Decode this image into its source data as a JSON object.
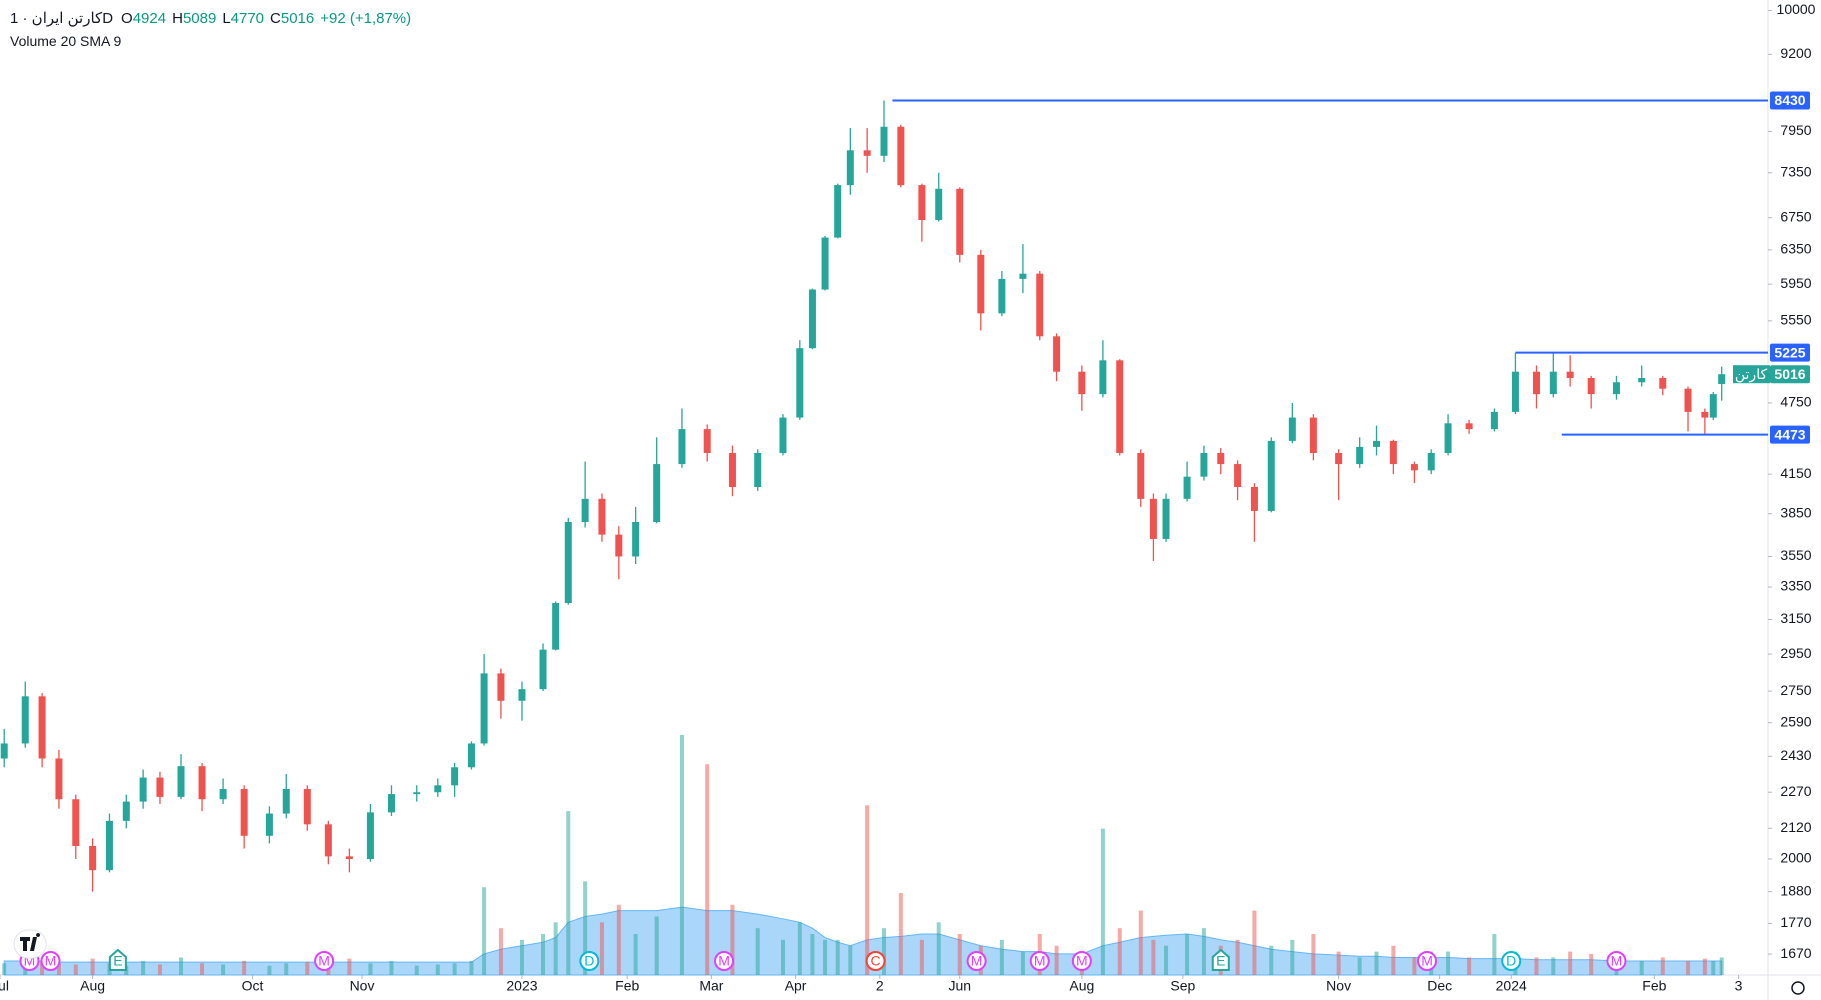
{
  "header": {
    "symbol": "کارتن ایران · 1D",
    "ohlc": [
      {
        "label": "O",
        "value": 4924
      },
      {
        "label": "H",
        "value": 5089
      },
      {
        "label": "L",
        "value": 4770
      },
      {
        "label": "C",
        "value": 5016
      }
    ],
    "change": "+92 (+1,87%)",
    "indicator": "Volume 20 SMA 9"
  },
  "chart_data": {
    "type": "candlestick",
    "log_scale": true,
    "grid": false,
    "up_color": "#26a69a",
    "down_color": "#ef5350",
    "volume_area_color": "#64b5f6",
    "line_color": "#2962ff",
    "ylim": [
      1605,
      10200
    ],
    "yticks": [
      10000,
      9200,
      7950,
      7350,
      6750,
      6350,
      5950,
      5550,
      4750,
      4150,
      3850,
      3550,
      3350,
      3150,
      2950,
      2750,
      2590,
      2430,
      2270,
      2120,
      2000,
      1880,
      1770,
      1670
    ],
    "xlim": [
      0,
      420
    ],
    "xticks": [
      {
        "value": 0,
        "label": "Jul"
      },
      {
        "value": 22,
        "label": "Aug"
      },
      {
        "value": 60,
        "label": "Oct"
      },
      {
        "value": 86,
        "label": "Nov"
      },
      {
        "value": 124,
        "label": "2023"
      },
      {
        "value": 149,
        "label": "Feb"
      },
      {
        "value": 169,
        "label": "Mar"
      },
      {
        "value": 189,
        "label": "Apr"
      },
      {
        "value": 209,
        "label": "2"
      },
      {
        "value": 228,
        "label": "Jun"
      },
      {
        "value": 257,
        "label": "Aug"
      },
      {
        "value": 281,
        "label": "Sep"
      },
      {
        "value": 318,
        "label": "Nov"
      },
      {
        "value": 342,
        "label": "Dec"
      },
      {
        "value": 359,
        "label": "2024"
      },
      {
        "value": 393,
        "label": "Feb"
      },
      {
        "value": 413,
        "label": "3"
      }
    ],
    "x": [
      1,
      6,
      10,
      14,
      18,
      22,
      26,
      30,
      34,
      38,
      43,
      48,
      53,
      58,
      64,
      68,
      73,
      78,
      83,
      88,
      93,
      99,
      104,
      108,
      112,
      115,
      119,
      124,
      129,
      132,
      135,
      139,
      143,
      147,
      151,
      156,
      162,
      168,
      174,
      180,
      186,
      190,
      193,
      196,
      199,
      202,
      206,
      210,
      214,
      219,
      223,
      228,
      233,
      238,
      243,
      247,
      251,
      257,
      262,
      266,
      271,
      274,
      277,
      282,
      286,
      290,
      294,
      298,
      302,
      307,
      312,
      318,
      323,
      327,
      331,
      336,
      340,
      344,
      349,
      355,
      360,
      365,
      369,
      373,
      378,
      384,
      390,
      395,
      401,
      405,
      407,
      409
    ],
    "open": [
      2420,
      2490,
      2723,
      2420,
      2240,
      2050,
      1958,
      2150,
      2230,
      2334,
      2250,
      2385,
      2240,
      2284,
      2090,
      2180,
      2284,
      2136,
      2010,
      2000,
      2185,
      2262,
      2270,
      2300,
      2380,
      2490,
      2844,
      2700,
      2760,
      2975,
      3250,
      3790,
      3960,
      3700,
      3550,
      3790,
      4230,
      4520,
      4320,
      4050,
      4320,
      4620,
      5270,
      5890,
      6500,
      7180,
      7670,
      7590,
      8020,
      7180,
      6720,
      7130,
      6290,
      5630,
      6010,
      6070,
      5390,
      5040,
      4830,
      5150,
      4320,
      3960,
      3670,
      3960,
      4130,
      4320,
      4230,
      4050,
      3870,
      4420,
      4620,
      4320,
      4230,
      4370,
      4420,
      4230,
      4180,
      4320,
      4570,
      4520,
      4670,
      5040,
      4830,
      5040,
      4980,
      4830,
      4940,
      4980,
      4880,
      4670,
      4620,
      4924
    ],
    "high": [
      2560,
      2800,
      2740,
      2460,
      2260,
      2080,
      2180,
      2260,
      2370,
      2360,
      2440,
      2400,
      2330,
      2300,
      2210,
      2350,
      2300,
      2150,
      2040,
      2220,
      2300,
      2300,
      2330,
      2400,
      2500,
      2950,
      2870,
      2800,
      3010,
      3260,
      3820,
      4250,
      4000,
      3760,
      3900,
      4450,
      4700,
      4560,
      4380,
      4350,
      4650,
      5350,
      5900,
      6520,
      7200,
      8000,
      8000,
      8430,
      8050,
      7200,
      7350,
      7150,
      6350,
      6100,
      6420,
      6100,
      5420,
      5100,
      5350,
      5160,
      4350,
      4000,
      4000,
      4250,
      4380,
      4360,
      4260,
      4080,
      4450,
      4750,
      4650,
      4350,
      4450,
      4550,
      4430,
      4250,
      4350,
      4650,
      4600,
      4700,
      5225,
      5100,
      5225,
      5200,
      5000,
      5000,
      5100,
      5000,
      4900,
      4700,
      4850,
      5089
    ],
    "low": [
      2380,
      2470,
      2380,
      2200,
      2000,
      1880,
      1950,
      2120,
      2200,
      2220,
      2240,
      2190,
      2220,
      2040,
      2060,
      2160,
      2110,
      1980,
      1950,
      1990,
      2170,
      2230,
      2250,
      2250,
      2370,
      2480,
      2610,
      2600,
      2750,
      2970,
      3240,
      3750,
      3650,
      3400,
      3500,
      3780,
      4200,
      4250,
      3980,
      4020,
      4300,
      4600,
      5260,
      5880,
      6490,
      7050,
      7350,
      7500,
      7150,
      6450,
      6700,
      6200,
      5450,
      5600,
      5850,
      5350,
      4950,
      4680,
      4800,
      4300,
      3900,
      3520,
      3650,
      3940,
      4100,
      4150,
      3950,
      3650,
      3860,
      4400,
      4260,
      3950,
      4200,
      4300,
      4150,
      4080,
      4150,
      4300,
      4480,
      4500,
      4650,
      4700,
      4800,
      4900,
      4700,
      4780,
      4900,
      4820,
      4500,
      4473,
      4600,
      4770
    ],
    "close": [
      2490,
      2723,
      2420,
      2240,
      2050,
      1958,
      2150,
      2230,
      2334,
      2250,
      2385,
      2240,
      2284,
      2090,
      2180,
      2284,
      2136,
      2010,
      2000,
      2185,
      2262,
      2270,
      2300,
      2380,
      2490,
      2844,
      2700,
      2760,
      2975,
      3250,
      3790,
      3960,
      3700,
      3550,
      3790,
      4230,
      4520,
      4320,
      4050,
      4320,
      4620,
      5270,
      5890,
      6500,
      7180,
      7670,
      7590,
      8020,
      7180,
      6720,
      7130,
      6290,
      5630,
      6010,
      6070,
      5390,
      5040,
      4830,
      5150,
      4320,
      3960,
      3670,
      3960,
      4130,
      4320,
      4230,
      4050,
      3870,
      4420,
      4620,
      4320,
      4230,
      4370,
      4420,
      4230,
      4180,
      4320,
      4570,
      4520,
      4670,
      5040,
      4830,
      5040,
      4980,
      4830,
      4940,
      4980,
      4880,
      4670,
      4620,
      4830,
      5016
    ],
    "volume": [
      10,
      8,
      12,
      10,
      9,
      14,
      10,
      8,
      12,
      9,
      15,
      10,
      9,
      12,
      8,
      10,
      11,
      9,
      14,
      10,
      12,
      8,
      9,
      10,
      12,
      75,
      40,
      30,
      35,
      45,
      140,
      80,
      45,
      60,
      35,
      50,
      205,
      180,
      60,
      40,
      30,
      45,
      35,
      30,
      30,
      25,
      145,
      40,
      70,
      30,
      45,
      35,
      25,
      30,
      20,
      35,
      25,
      20,
      125,
      40,
      55,
      30,
      25,
      35,
      40,
      25,
      30,
      55,
      25,
      30,
      35,
      20,
      15,
      20,
      25,
      15,
      20,
      20,
      15,
      35,
      20,
      15,
      15,
      20,
      18,
      15,
      12,
      15,
      12,
      14,
      12,
      15
    ],
    "volume_sma": [
      12,
      12,
      12,
      11,
      11,
      11,
      11,
      11,
      11,
      11,
      11,
      11,
      11,
      11,
      11,
      11,
      11,
      11,
      11,
      11,
      11,
      11,
      11,
      11,
      11,
      18,
      22,
      25,
      28,
      32,
      45,
      50,
      52,
      55,
      55,
      55,
      58,
      55,
      55,
      52,
      48,
      45,
      40,
      32,
      28,
      25,
      30,
      32,
      33,
      35,
      35,
      30,
      25,
      22,
      20,
      20,
      18,
      18,
      25,
      28,
      32,
      33,
      34,
      35,
      33,
      30,
      28,
      25,
      22,
      20,
      18,
      17,
      16,
      16,
      15,
      15,
      15,
      15,
      14,
      14,
      14,
      13,
      13,
      13,
      13,
      12,
      12,
      12,
      12,
      12,
      12,
      12
    ],
    "lines": [
      {
        "value": 8430,
        "x_start": 212
      },
      {
        "value": 5225,
        "x_start": 360
      },
      {
        "value": 4473,
        "x_start": 371,
        "x_end": 420
      }
    ],
    "last_price": {
      "value": 5016,
      "tag": "کارتن"
    },
    "events": [
      {
        "x": 7,
        "label": "M"
      },
      {
        "x": 12,
        "label": "M"
      },
      {
        "x": 28,
        "label": "E"
      },
      {
        "x": 77,
        "label": "M"
      },
      {
        "x": 140,
        "label": "D"
      },
      {
        "x": 172,
        "label": "M"
      },
      {
        "x": 208,
        "label": "C"
      },
      {
        "x": 232,
        "label": "M"
      },
      {
        "x": 247,
        "label": "M"
      },
      {
        "x": 257,
        "label": "M"
      },
      {
        "x": 290,
        "label": "E"
      },
      {
        "x": 339,
        "label": "M"
      },
      {
        "x": 359,
        "label": "D"
      },
      {
        "x": 384,
        "label": "M"
      }
    ]
  }
}
